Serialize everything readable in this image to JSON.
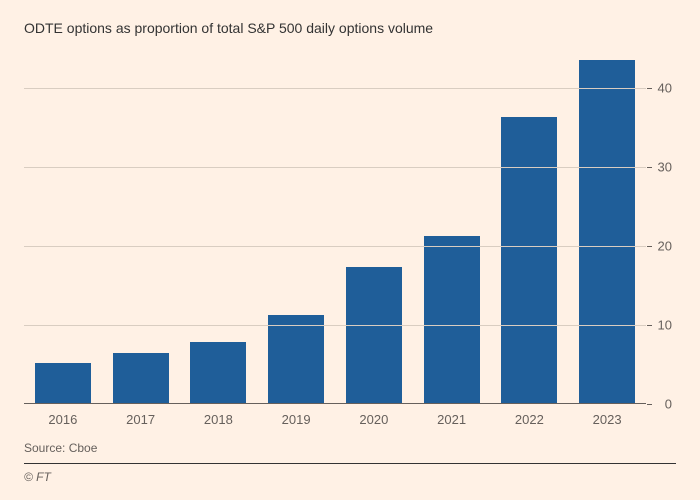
{
  "chart": {
    "type": "bar",
    "subtitle": "ODTE options as proportion of total S&P 500 daily options volume",
    "categories": [
      "2016",
      "2017",
      "2018",
      "2019",
      "2020",
      "2021",
      "2022",
      "2023"
    ],
    "values": [
      5.2,
      6.4,
      7.8,
      11.2,
      17.3,
      21.2,
      36.3,
      43.5
    ],
    "bar_color": "#1f5e99",
    "ylim": [
      0,
      45
    ],
    "yticks": [
      0,
      10,
      20,
      30,
      40
    ],
    "ytick_labels": [
      "0",
      "10",
      "20",
      "30",
      "40"
    ],
    "background_color": "#fff1e5",
    "grid_color": "#d9cdc1",
    "baseline_color": "#66605c",
    "axis_label_color": "#66605c",
    "axis_fontsize": 13,
    "subtitle_fontsize": 14,
    "subtitle_color": "#333333",
    "bar_width_ratio": 0.72
  },
  "footer": {
    "source": "Source: Cboe",
    "brand": "© FT"
  }
}
